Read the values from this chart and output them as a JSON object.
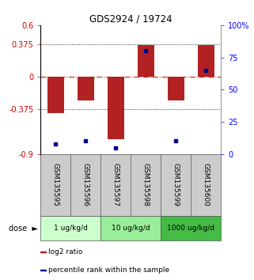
{
  "title": "GDS2924 / 19724",
  "samples": [
    "GSM135595",
    "GSM135596",
    "GSM135597",
    "GSM135598",
    "GSM135599",
    "GSM135600"
  ],
  "log2_ratio": [
    -0.42,
    -0.28,
    -0.73,
    0.37,
    -0.28,
    0.37
  ],
  "percentile_rank": [
    8,
    10,
    5,
    80,
    10,
    65
  ],
  "bar_color": "#b22222",
  "dot_color": "#00008b",
  "ylim_left": [
    -0.9,
    0.6
  ],
  "ylim_right": [
    0,
    100
  ],
  "yticks_left": [
    -0.9,
    -0.375,
    0,
    0.375,
    0.6
  ],
  "ytick_labels_left": [
    "-0.9",
    "-0.375",
    "0",
    "0.375",
    "0.6"
  ],
  "yticks_right": [
    0,
    25,
    50,
    75,
    100
  ],
  "ytick_labels_right": [
    "0",
    "25",
    "50",
    "75",
    "100%"
  ],
  "hlines": [
    0.375,
    -0.375
  ],
  "dose_groups": [
    {
      "label": "1 ug/kg/d",
      "indices": [
        0,
        1
      ],
      "color": "#ccffcc"
    },
    {
      "label": "10 ug/kg/d",
      "indices": [
        2,
        3
      ],
      "color": "#99ee99"
    },
    {
      "label": "1000 ug/kg/d",
      "indices": [
        4,
        5
      ],
      "color": "#44bb44"
    }
  ],
  "legend_log2": "log2 ratio",
  "legend_pct": "percentile rank within the sample",
  "bar_width": 0.55,
  "sample_bg": "#cccccc",
  "title_fontsize": 8.5,
  "tick_fontsize": 7
}
